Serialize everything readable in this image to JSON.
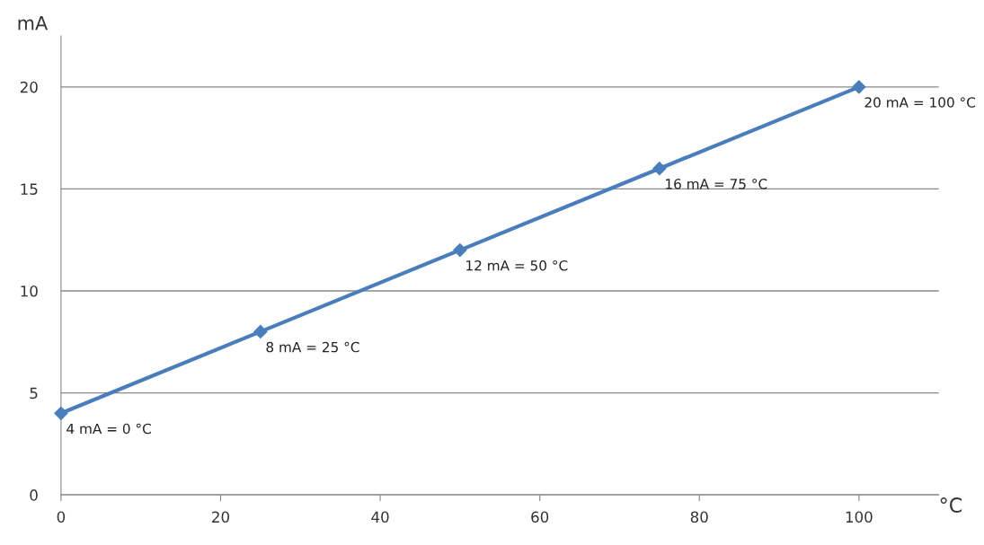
{
  "chart_data": {
    "type": "line",
    "xlabel": "°C",
    "ylabel": "mA",
    "x": [
      0,
      25,
      50,
      75,
      100
    ],
    "series": [
      {
        "color": "#4a7ebb",
        "values": [
          4,
          8,
          12,
          16,
          20
        ]
      }
    ],
    "xlim": [
      0,
      110
    ],
    "xticks": [
      0,
      20,
      40,
      60,
      80,
      100
    ],
    "ylim": [
      0,
      22.5
    ],
    "yticks": [
      0,
      5,
      10,
      15,
      20
    ],
    "grid": "y",
    "marker": "diamond",
    "line_style": "solid",
    "legend": false,
    "annotations": [
      {
        "text": "4 mA = 0 °C",
        "x": 0,
        "y": 4
      },
      {
        "text": "8 mA = 25 °C",
        "x": 25,
        "y": 8
      },
      {
        "text": "12 mA = 50 °C",
        "x": 50,
        "y": 12
      },
      {
        "text": "16 mA = 75 °C",
        "x": 75,
        "y": 16
      },
      {
        "text": "20 mA = 100 °C",
        "x": 100,
        "y": 20
      }
    ]
  }
}
